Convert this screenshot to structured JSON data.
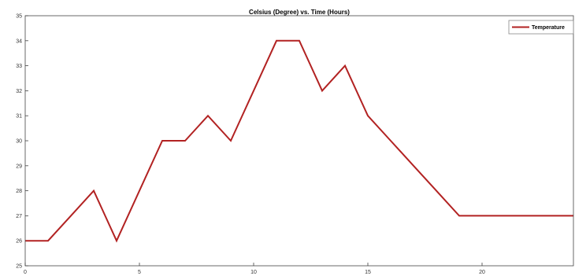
{
  "chart_data": {
    "type": "line",
    "title": "Celsius (Degree) vs. Time (Hours)",
    "xlabel": "",
    "ylabel": "",
    "xlim": [
      0,
      24
    ],
    "ylim": [
      25,
      35
    ],
    "xticks": [
      0,
      5,
      10,
      15,
      20
    ],
    "yticks": [
      25,
      26,
      27,
      28,
      29,
      30,
      31,
      32,
      33,
      34,
      35
    ],
    "grid": false,
    "legend_position": "top-right",
    "series": [
      {
        "name": "Temperature",
        "color": "#b22222",
        "x": [
          0,
          1,
          2,
          3,
          4,
          5,
          6,
          7,
          8,
          9,
          10,
          11,
          12,
          13,
          14,
          15,
          16,
          17,
          18,
          19,
          20,
          21,
          22,
          23,
          24
        ],
        "y": [
          26,
          26,
          27,
          28,
          26,
          28,
          30,
          30,
          31,
          30,
          32,
          34,
          34,
          32,
          33,
          31,
          30,
          29,
          28,
          27,
          27,
          27,
          27,
          27,
          27
        ]
      }
    ]
  }
}
